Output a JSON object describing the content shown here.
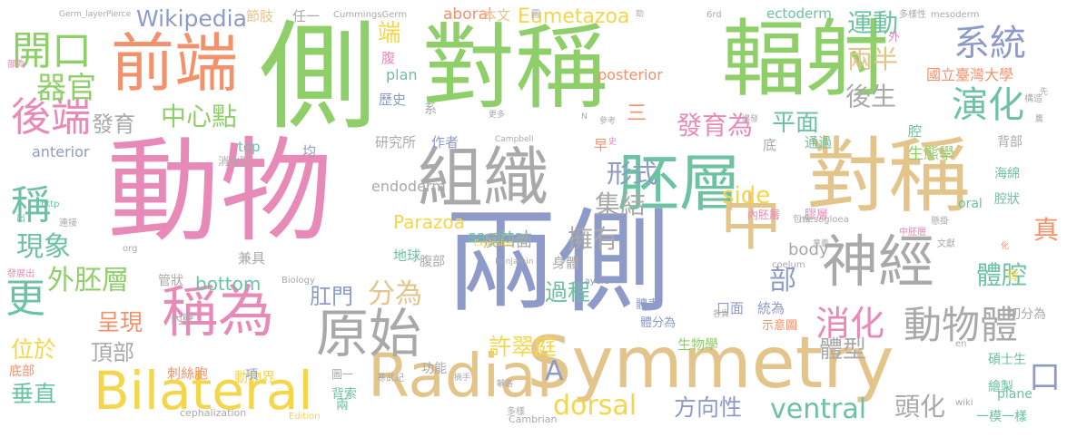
{
  "palette": {
    "pink": "#e88ab8",
    "green": "#8fcf6a",
    "tan": "#e3c58c",
    "blue": "#8e9ac8",
    "gray": "#a9a9a9",
    "teal": "#6cc2a1",
    "orange": "#f3916b",
    "yellow": "#f5d64a"
  },
  "words": [
    {
      "text": "動物",
      "color": "#e88ab8"
    },
    {
      "text": "兩側",
      "color": "#8e9ac8"
    },
    {
      "text": "Symmetry",
      "color": "#e3c58c"
    },
    {
      "text": "對稱",
      "color": "#8fcf6a"
    },
    {
      "text": "側",
      "color": "#8fcf6a"
    },
    {
      "text": "輻射",
      "color": "#8fcf6a"
    },
    {
      "text": "對稱",
      "color": "#e3c58c"
    },
    {
      "text": "組織",
      "color": "#a9a9a9"
    },
    {
      "text": "胚層",
      "color": "#6cc2a1"
    },
    {
      "text": "前端",
      "color": "#f3916b"
    },
    {
      "text": "中",
      "color": "#e3c58c"
    },
    {
      "text": "神經",
      "color": "#a9a9a9"
    },
    {
      "text": "Radial",
      "color": "#e3c58c"
    },
    {
      "text": "Bilateral",
      "color": "#f5d64a"
    },
    {
      "text": "稱為",
      "color": "#e88ab8"
    },
    {
      "text": "原始",
      "color": "#a9a9a9"
    },
    {
      "text": "開口",
      "color": "#8fcf6a"
    },
    {
      "text": "更",
      "color": "#6cc2a1"
    },
    {
      "text": "稱",
      "color": "#6cc2a1"
    },
    {
      "text": "後端",
      "color": "#e88ab8"
    },
    {
      "text": "系統",
      "color": "#8e9ac8"
    },
    {
      "text": "演化",
      "color": "#6cc2a1"
    },
    {
      "text": "動物體",
      "color": "#a9a9a9"
    },
    {
      "text": "消化",
      "color": "#e88ab8"
    },
    {
      "text": "器官",
      "color": "#8fcf6a"
    },
    {
      "text": "Wikipedia",
      "color": "#8e9ac8"
    },
    {
      "text": "外胚層",
      "color": "#8fcf6a"
    },
    {
      "text": "現象",
      "color": "#6cc2a1"
    },
    {
      "text": "中心點",
      "color": "#8fcf6a"
    },
    {
      "text": "發育",
      "color": "#a9a9a9"
    },
    {
      "text": "運動",
      "color": "#6cc2a1"
    },
    {
      "text": "兩半",
      "color": "#e3c58c"
    },
    {
      "text": "後生",
      "color": "#a9a9a9"
    },
    {
      "text": "平面",
      "color": "#6cc2a1"
    },
    {
      "text": "發育為",
      "color": "#e88ab8"
    },
    {
      "text": "形式",
      "color": "#8e9ac8"
    },
    {
      "text": "集結",
      "color": "#a9a9a9"
    },
    {
      "text": "擁有",
      "color": "#a9a9a9"
    },
    {
      "text": "side",
      "color": "#f5d64a"
    },
    {
      "text": "dorsal",
      "color": "#f5d64a"
    },
    {
      "text": "ventral",
      "color": "#6cc2a1"
    },
    {
      "text": "方向性",
      "color": "#8e9ac8"
    },
    {
      "text": "體型",
      "color": "#a9a9a9"
    },
    {
      "text": "體腔",
      "color": "#6cc2a1"
    },
    {
      "text": "頭化",
      "color": "#a9a9a9"
    },
    {
      "text": "許翠庭",
      "color": "#f5d64a"
    },
    {
      "text": "過程",
      "color": "#6cc2a1"
    },
    {
      "text": "分為",
      "color": "#e3c58c"
    },
    {
      "text": "肛門",
      "color": "#8e9ac8"
    },
    {
      "text": "呈現",
      "color": "#f3916b"
    },
    {
      "text": "頂部",
      "color": "#a9a9a9"
    },
    {
      "text": "位於",
      "color": "#f5d64a"
    },
    {
      "text": "垂直",
      "color": "#6cc2a1"
    },
    {
      "text": "A",
      "color": "#8e9ac8"
    },
    {
      "text": "口",
      "color": "#8e9ac8"
    },
    {
      "text": "部",
      "color": "#8e9ac8"
    },
    {
      "text": "真",
      "color": "#f3916b"
    },
    {
      "text": "端",
      "color": "#f5d64a"
    },
    {
      "text": "三",
      "color": "#f3916b"
    },
    {
      "text": "Eumetazoa",
      "color": "#f5d64a"
    },
    {
      "text": "Parazoa",
      "color": "#f5d64a"
    },
    {
      "text": "sagittal",
      "color": "#6cc2a1"
    },
    {
      "text": "反口面",
      "color": "#a9a9a9"
    },
    {
      "text": "body",
      "color": "#a9a9a9"
    },
    {
      "text": "bottom",
      "color": "#6cc2a1"
    },
    {
      "text": "生態學",
      "color": "#8fcf6a"
    },
    {
      "text": "國立臺灣大學",
      "color": "#f3916b"
    },
    {
      "text": "ectoderm",
      "color": "#6cc2a1"
    },
    {
      "text": "posterior",
      "color": "#f3916b"
    },
    {
      "text": "plan",
      "color": "#6cc2a1"
    },
    {
      "text": "aboral",
      "color": "#f3916b"
    },
    {
      "text": "endoderm",
      "color": "#a9a9a9"
    },
    {
      "text": "anterior",
      "color": "#8e9ac8"
    },
    {
      "text": "top",
      "color": "#6cc2a1"
    },
    {
      "text": "oral",
      "color": "#6cc2a1"
    },
    {
      "text": "研究所",
      "color": "#a9a9a9"
    },
    {
      "text": "作者",
      "color": "#8e9ac8"
    },
    {
      "text": "歷史",
      "color": "#8e9ac8"
    },
    {
      "text": "腹",
      "color": "#e88ab8"
    },
    {
      "text": "本文",
      "color": "#e3c58c"
    },
    {
      "text": "節肢",
      "color": "#e3c58c"
    },
    {
      "text": "任一",
      "color": "#a9a9a9"
    },
    {
      "text": "通過",
      "color": "#6cc2a1"
    },
    {
      "text": "海綿",
      "color": "#6cc2a1"
    },
    {
      "text": "腔狀",
      "color": "#6cc2a1"
    },
    {
      "text": "背部",
      "color": "#a9a9a9"
    },
    {
      "text": "身體",
      "color": "#a9a9a9"
    },
    {
      "text": "腹部",
      "color": "#a9a9a9"
    },
    {
      "text": "地球",
      "color": "#6cc2a1"
    },
    {
      "text": "兼具",
      "color": "#a9a9a9"
    },
    {
      "text": "管狀",
      "color": "#a9a9a9"
    },
    {
      "text": "口面",
      "color": "#8e9ac8"
    },
    {
      "text": "統為",
      "color": "#8e9ac8"
    },
    {
      "text": "切分為",
      "color": "#a9a9a9"
    },
    {
      "text": "生物學",
      "color": "#8fcf6a"
    },
    {
      "text": "刺絲胞",
      "color": "#f3916b"
    },
    {
      "text": "動物界",
      "color": "#f5d64a"
    },
    {
      "text": "功能",
      "color": "#a9a9a9"
    },
    {
      "text": "背索",
      "color": "#6cc2a1"
    },
    {
      "text": "碩士生",
      "color": "#6cc2a1"
    },
    {
      "text": "繪製",
      "color": "#6cc2a1"
    },
    {
      "text": "一模一樣",
      "color": "#6cc2a1"
    },
    {
      "text": "plane",
      "color": "#6cc2a1"
    },
    {
      "text": "底部",
      "color": "#f3916b"
    },
    {
      "text": "體表",
      "color": "#8e9ac8"
    },
    {
      "text": "體分為",
      "color": "#8e9ac8"
    },
    {
      "text": "示意圖",
      "color": "#f3916b"
    },
    {
      "text": "內壁",
      "color": "#a9a9a9"
    },
    {
      "text": "消化腔",
      "color": "#a9a9a9"
    },
    {
      "text": "均",
      "color": "#8e9ac8"
    },
    {
      "text": "膠層",
      "color": "#e88ab8"
    },
    {
      "text": "內胚層",
      "color": "#e88ab8"
    },
    {
      "text": "早",
      "color": "#f3916b"
    },
    {
      "text": "底",
      "color": "#a9a9a9"
    },
    {
      "text": "腔",
      "color": "#6cc2a1"
    },
    {
      "text": "系",
      "color": "#a9a9a9"
    },
    {
      "text": "外",
      "color": "#e88ab8"
    },
    {
      "text": "背",
      "color": "#f5d64a"
    },
    {
      "text": "項",
      "color": "#8e9ac8"
    },
    {
      "text": "兩",
      "color": "#6cc2a1"
    },
    {
      "text": "圖一",
      "color": "#a9a9a9"
    },
    {
      "text": "Germ_layerPierce",
      "color": "#a9a9a9"
    },
    {
      "text": "CummingsGerm",
      "color": "#a9a9a9"
    },
    {
      "text": "6rd",
      "color": "#a9a9a9"
    },
    {
      "text": "mesoderm",
      "color": "#a9a9a9"
    },
    {
      "text": "多樣性",
      "color": "#a9a9a9"
    },
    {
      "text": "Campbell",
      "color": "#a9a9a9"
    },
    {
      "text": "mesogloea",
      "color": "#a9a9a9"
    },
    {
      "text": "Explosion",
      "color": "#f5d64a"
    },
    {
      "text": "Benjamin",
      "color": "#a9a9a9"
    },
    {
      "text": "Biology",
      "color": "#a9a9a9"
    },
    {
      "text": "coelum",
      "color": "#a9a9a9"
    },
    {
      "text": "Layers",
      "color": "#8e9ac8"
    },
    {
      "text": "cephalization",
      "color": "#a9a9a9"
    },
    {
      "text": "Cambrian",
      "color": "#a9a9a9"
    },
    {
      "text": "Edition",
      "color": "#f5d64a"
    },
    {
      "text": "wiki",
      "color": "#a9a9a9"
    },
    {
      "text": "en",
      "color": "#a9a9a9"
    },
    {
      "text": "http",
      "color": "#6cc2a1"
    },
    {
      "text": "org",
      "color": "#a9a9a9"
    },
    {
      "text": "出",
      "color": "#6cc2a1"
    },
    {
      "text": "連接",
      "color": "#a9a9a9"
    },
    {
      "text": "發展出",
      "color": "#e88ab8"
    },
    {
      "text": "多樣",
      "color": "#a9a9a9"
    },
    {
      "text": "寒武紀",
      "color": "#a9a9a9"
    },
    {
      "text": "輔路",
      "color": "#a9a9a9"
    },
    {
      "text": "中胚層",
      "color": "#e88ab8"
    },
    {
      "text": "文獻",
      "color": "#a9a9a9"
    },
    {
      "text": "懸掛",
      "color": "#a9a9a9"
    },
    {
      "text": "構造",
      "color": "#a9a9a9"
    },
    {
      "text": "包含",
      "color": "#a9a9a9"
    },
    {
      "text": "參考",
      "color": "#a9a9a9"
    },
    {
      "text": "更多",
      "color": "#a9a9a9"
    },
    {
      "text": "爆發",
      "color": "#a9a9a9"
    },
    {
      "text": "各異",
      "color": "#a9a9a9"
    },
    {
      "text": "摘手",
      "color": "#a9a9a9"
    },
    {
      "text": "部為",
      "color": "#e88ab8"
    },
    {
      "text": "化",
      "color": "#f3916b"
    },
    {
      "text": "先",
      "color": "#a9a9a9"
    },
    {
      "text": "鷹",
      "color": "#a9a9a9"
    },
    {
      "text": "勁",
      "color": "#a9a9a9"
    },
    {
      "text": "N",
      "color": "#a9a9a9"
    },
    {
      "text": "圖",
      "color": "#a9a9a9"
    },
    {
      "text": "史",
      "color": "#e88ab8"
    },
    {
      "text": "意義",
      "color": "#a9a9a9"
    }
  ]
}
